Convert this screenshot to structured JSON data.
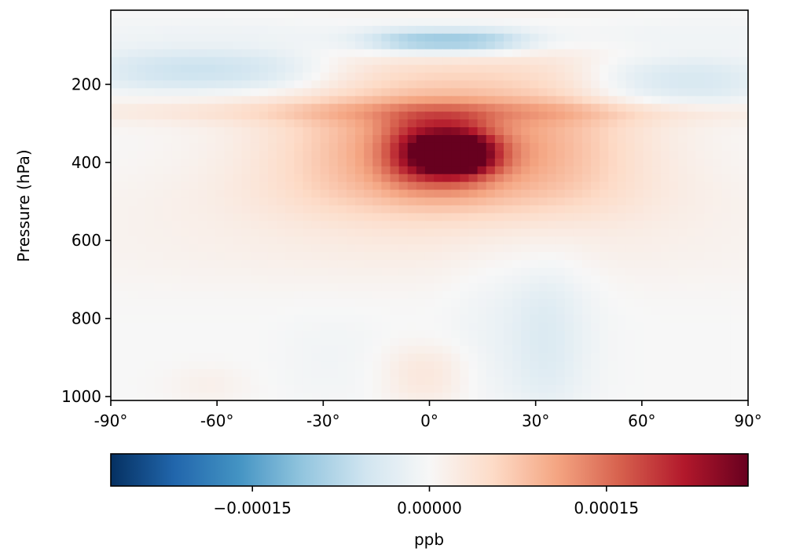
{
  "chart_data": {
    "type": "heatmap",
    "title": "",
    "xlabel": "",
    "ylabel": "Pressure (hPa)",
    "x_ticks": [
      -90,
      -60,
      -30,
      0,
      30,
      60,
      90
    ],
    "x_tick_labels": [
      "-90°",
      "-60°",
      "-30°",
      "0°",
      "30°",
      "60°",
      "90°"
    ],
    "xlim": [
      -90,
      90
    ],
    "y_ticks": [
      200,
      400,
      600,
      800,
      1000
    ],
    "y_tick_labels": [
      "200",
      "400",
      "600",
      "800",
      "1000"
    ],
    "ylim": [
      1010,
      10
    ],
    "y_inverted": true,
    "colormap": "RdBu_r",
    "colorbar": {
      "orientation": "horizontal",
      "label": "ppb",
      "range": [
        -0.00027,
        0.00027
      ],
      "ticks": [
        -0.00015,
        0.0,
        0.00015
      ],
      "tick_labels": [
        "−0.00015",
        "0.00000",
        "0.00015"
      ]
    },
    "grid": false,
    "field_features": [
      {
        "lat": [
          -90,
          90
        ],
        "p": [
          40,
          110
        ],
        "value": -2e-05
      },
      {
        "lat": [
          -15,
          25
        ],
        "p": [
          70,
          110
        ],
        "value": -0.00017
      },
      {
        "lat": [
          -90,
          -33
        ],
        "p": [
          120,
          210
        ],
        "value": -7e-05
      },
      {
        "lat": [
          48,
          90
        ],
        "p": [
          140,
          250
        ],
        "value": -6e-05
      },
      {
        "lat": [
          -30,
          48
        ],
        "p": [
          120,
          480
        ],
        "value": 8e-05
      },
      {
        "lat": [
          -90,
          90
        ],
        "p": [
          250,
          290
        ],
        "value": 6e-05
      },
      {
        "lat": [
          -40,
          50
        ],
        "p": [
          280,
          520
        ],
        "value": 6e-05
      },
      {
        "lat": [
          -10,
          15
        ],
        "p": [
          290,
          450
        ],
        "value": 0.00015
      },
      {
        "lat": [
          0,
          15
        ],
        "p": [
          340,
          420
        ],
        "value": 0.00025
      },
      {
        "lat": [
          -90,
          90
        ],
        "p": [
          450,
          700
        ],
        "value": 2e-05
      },
      {
        "lat": [
          10,
          45
        ],
        "p": [
          600,
          1010
        ],
        "value": -2e-05
      },
      {
        "lat": [
          28,
          38
        ],
        "p": [
          700,
          1010
        ],
        "value": -4e-05
      },
      {
        "lat": [
          -40,
          -15
        ],
        "p": [
          800,
          1010
        ],
        "value": -1e-05
      },
      {
        "lat": [
          -10,
          8
        ],
        "p": [
          880,
          1010
        ],
        "value": 4e-05
      },
      {
        "lat": [
          -70,
          -55
        ],
        "p": [
          930,
          1010
        ],
        "value": 2e-05
      }
    ]
  }
}
